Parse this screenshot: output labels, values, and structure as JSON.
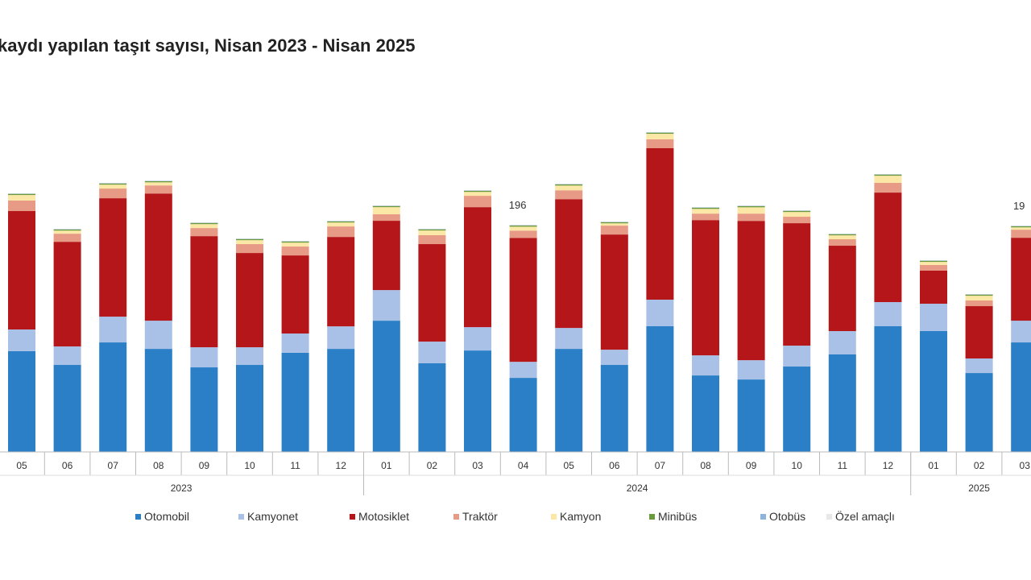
{
  "chart_data": {
    "type": "bar",
    "stacked": true,
    "title": "kaydı yapılan taşıt sayısı, Nisan 2023 - Nisan 2025",
    "xlabel": "",
    "ylabel": "",
    "grid": false,
    "legend_position": "bottom",
    "categories": [
      "05",
      "06",
      "07",
      "08",
      "09",
      "10",
      "11",
      "12",
      "01",
      "02",
      "03",
      "04",
      "05",
      "06",
      "07",
      "08",
      "09",
      "10",
      "11",
      "12",
      "01",
      "02",
      "03"
    ],
    "years": [
      {
        "label": "2023",
        "from": 0,
        "to": 7
      },
      {
        "label": "2024",
        "from": 8,
        "to": 19
      },
      {
        "label": "2025",
        "from": 20,
        "to": 22
      }
    ],
    "series": [
      {
        "name": "Otomobil",
        "color": "#2a7fc7",
        "values": [
          87.2,
          75.3,
          94.8,
          89.2,
          73.2,
          75.3,
          85.8,
          89.2,
          113.6,
          76.7,
          87.8,
          64.1,
          89.2,
          75.3,
          108.8,
          66.2,
          62.7,
          73.9,
          84.4,
          108.8,
          104.6,
          68.3,
          94.8
        ]
      },
      {
        "name": "Kamyonet",
        "color": "#a9c1e6",
        "values": [
          18.8,
          16.0,
          22.3,
          24.4,
          17.4,
          15.3,
          16.7,
          19.5,
          26.5,
          18.8,
          20.2,
          13.9,
          18.1,
          13.2,
          23.0,
          17.4,
          16.7,
          18.1,
          20.2,
          20.9,
          23.7,
          12.6,
          18.8
        ]
      },
      {
        "name": "Motosiklet",
        "color": "#b5161a",
        "values": [
          102.5,
          90.6,
          102.5,
          110.1,
          96.2,
          81.6,
          67.6,
          77.4,
          60.0,
          84.4,
          103.9,
          107.3,
          111.5,
          99.7,
          131.1,
          117.1,
          120.6,
          106.0,
          73.9,
          94.8,
          28.6,
          45.3,
          71.8
        ]
      },
      {
        "name": "Traktör",
        "color": "#e79a86",
        "values": [
          9.1,
          7.0,
          8.4,
          7.0,
          7.0,
          7.7,
          7.7,
          9.1,
          5.6,
          7.7,
          9.8,
          6.3,
          7.7,
          7.7,
          7.7,
          5.6,
          6.3,
          5.6,
          5.6,
          8.4,
          4.9,
          4.9,
          7.0
        ]
      },
      {
        "name": "Kamyon",
        "color": "#fbe8a6",
        "values": [
          4.8,
          2.7,
          3.4,
          2.7,
          3.4,
          3.4,
          3.4,
          3.4,
          6.2,
          4.1,
          3.4,
          3.4,
          4.1,
          2.0,
          4.8,
          4.1,
          5.5,
          4.1,
          3.4,
          6.2,
          2.7,
          4.1,
          2.0
        ]
      },
      {
        "name": "Minibüs",
        "color": "#6a9a3c",
        "values": [
          1.0,
          1.0,
          1.0,
          1.0,
          1.0,
          1.0,
          1.0,
          1.0,
          1.0,
          1.0,
          1.0,
          1.0,
          1.0,
          1.0,
          1.0,
          1.0,
          1.0,
          1.0,
          1.0,
          1.0,
          1.0,
          1.0,
          1.0
        ]
      },
      {
        "name": "Otobüs",
        "color": "#8fb4dc",
        "values": [
          0.3,
          0.3,
          0.3,
          0.3,
          0.3,
          0.3,
          0.3,
          0.3,
          0.3,
          0.3,
          0.3,
          0.3,
          0.3,
          0.3,
          0.3,
          0.3,
          0.3,
          0.3,
          0.3,
          0.3,
          0.3,
          0.3,
          0.3
        ]
      },
      {
        "name": "Özel amaçlı",
        "color": "#e8e8e8",
        "values": [
          0.2,
          0.2,
          0.2,
          0.2,
          0.2,
          0.2,
          0.2,
          0.2,
          0.2,
          0.2,
          0.2,
          0.2,
          0.2,
          0.2,
          0.2,
          0.2,
          0.2,
          0.2,
          0.2,
          0.2,
          0.2,
          0.2,
          0.2
        ]
      }
    ],
    "data_labels": [
      {
        "index": 11,
        "text": "196"
      },
      {
        "index": 22,
        "text": "19"
      }
    ]
  }
}
